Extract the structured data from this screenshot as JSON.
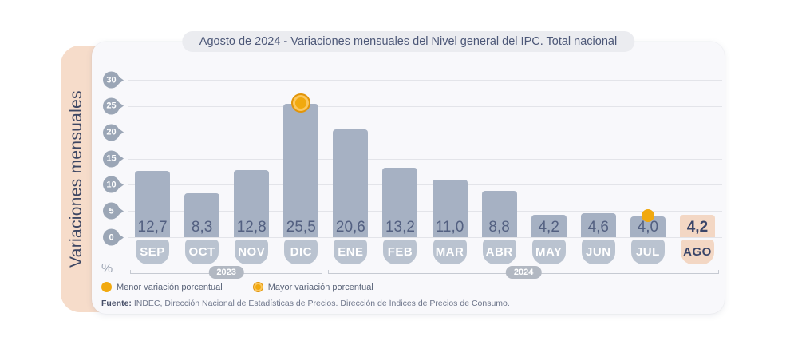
{
  "title": "Agosto de 2024 - Variaciones mensuales del Nivel general del IPC. Total nacional",
  "chart_data": {
    "type": "bar",
    "title": "Agosto de 2024 - Variaciones mensuales del Nivel general del IPC. Total nacional",
    "ylabel": "Variaciones mensuales",
    "unit": "%",
    "ylim": [
      0,
      30
    ],
    "yticks": [
      30,
      25,
      20,
      15,
      10,
      5,
      0
    ],
    "grid": true,
    "legend_position": "bottom-left",
    "categories": [
      "SEP",
      "OCT",
      "NOV",
      "DIC",
      "ENE",
      "FEB",
      "MAR",
      "ABR",
      "MAY",
      "JUN",
      "JUL",
      "AGO"
    ],
    "values": [
      12.7,
      8.3,
      12.8,
      25.5,
      20.6,
      13.2,
      11.0,
      8.8,
      4.2,
      4.6,
      4.0,
      4.2
    ],
    "value_labels": [
      "12,7",
      "8,3",
      "12,8",
      "25,5",
      "20,6",
      "13,2",
      "11,0",
      "8,8",
      "4,2",
      "4,6",
      "4,0",
      "4,2"
    ],
    "highlight_category": "AGO",
    "max_marker": {
      "category": "DIC",
      "label": "Mayor variación porcentual"
    },
    "min_marker": {
      "category": "JUL",
      "label": "Menor variación porcentual"
    },
    "year_groups": [
      {
        "label": "2023",
        "from": "SEP",
        "to": "DIC"
      },
      {
        "label": "2024",
        "from": "ENE",
        "to": "AGO"
      }
    ]
  },
  "legend": [
    {
      "label": "Menor variación porcentual",
      "marker": "solid-dot"
    },
    {
      "label": "Mayor variación porcentual",
      "marker": "ring-dot"
    }
  ],
  "source": {
    "prefix": "Fuente:",
    "text": " INDEC, Dirección Nacional de Estadísticas de Precios. Dirección de Índices de Precios de Consumo."
  },
  "colors": {
    "bar": "#a6b1c3",
    "bar_highlight": "#f3d7c4",
    "month_pill": "#bac3d0",
    "month_pill_highlight": "#f3d7c4",
    "value_text": "#536081",
    "value_text_highlight": "#3a4569",
    "accent_orange": "#f1a90f",
    "accent_orange_dark": "#e2950a",
    "accent_orange_light": "#fbc75f",
    "sidebar_bg": "#f6dcca",
    "sidebar_text": "#3e4763",
    "card_bg": "#f8f8fb",
    "title_text": "#4d5878",
    "tick_pin": "#9ba6b6",
    "year_pill": "#b2b8c2",
    "gridline": "#e3e4e9"
  }
}
